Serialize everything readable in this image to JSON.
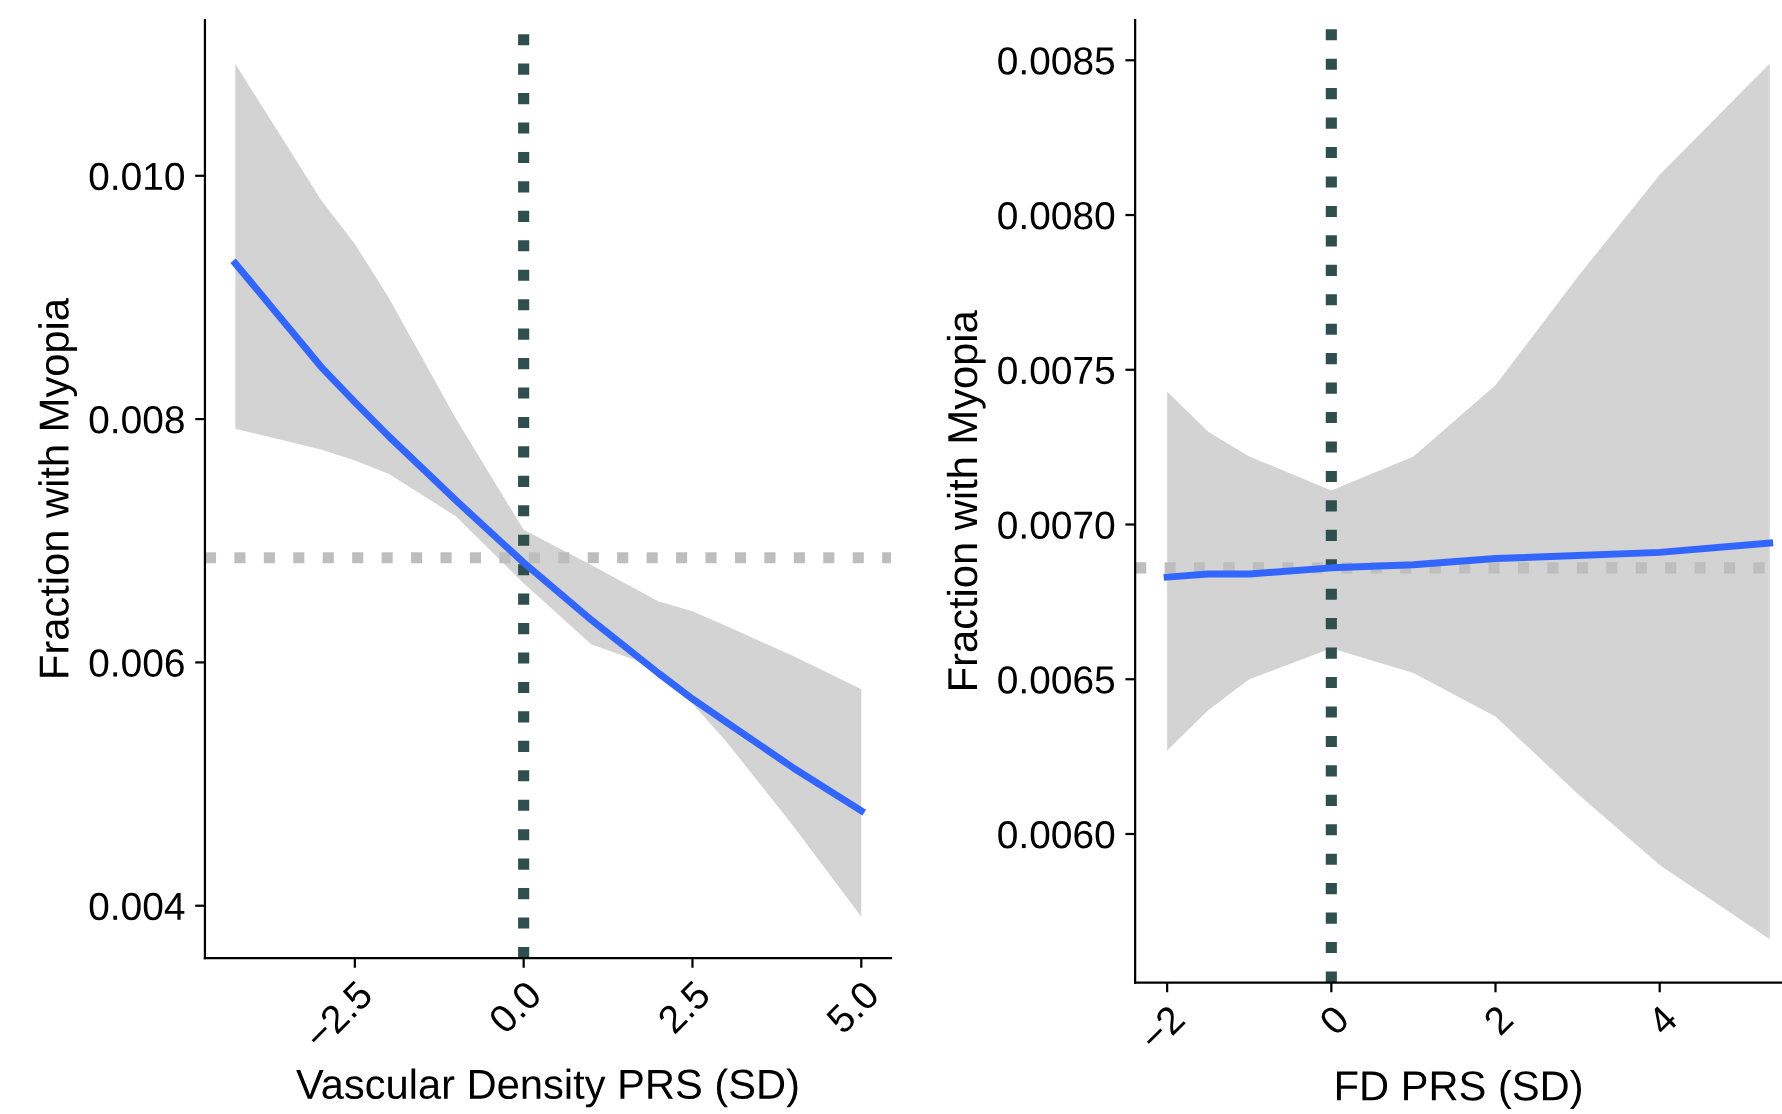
{
  "chart_data": [
    {
      "type": "line",
      "xlabel": "Vascular Density PRS (SD)",
      "ylabel": "Fraction with Myopia",
      "xlim": [
        -4.72,
        5.44
      ],
      "ylim": [
        0.00357,
        0.01128
      ],
      "xticks": [
        {
          "value": -2.5,
          "label": "−2.5"
        },
        {
          "value": 0,
          "label": "0.0"
        },
        {
          "value": 2.5,
          "label": "2.5"
        },
        {
          "value": 5,
          "label": "5.0"
        }
      ],
      "yticks": [
        {
          "value": 0.004,
          "label": "0.004"
        },
        {
          "value": 0.006,
          "label": "0.006"
        },
        {
          "value": 0.008,
          "label": "0.008"
        },
        {
          "value": 0.01,
          "label": "0.010"
        }
      ],
      "grid": false,
      "legend": false,
      "marker": "none",
      "line_style": "solid",
      "series": [
        {
          "color": "#3366ff",
          "x": [
            -4.27,
            -3,
            -2.5,
            -2,
            -1,
            0,
            1,
            2,
            2.5,
            3,
            4,
            5
          ],
          "values": [
            0.00928,
            0.00843,
            0.00814,
            0.00786,
            0.00733,
            0.00682,
            0.00635,
            0.00591,
            0.0057,
            0.00551,
            0.00513,
            0.00478
          ],
          "lower": [
            0.00792,
            0.00775,
            0.00766,
            0.00755,
            0.0072,
            0.00665,
            0.00615,
            0.00595,
            0.00566,
            0.00535,
            0.00465,
            0.00391
          ],
          "upper": [
            0.01092,
            0.0098,
            0.00944,
            0.009,
            0.008,
            0.00709,
            0.0068,
            0.0065,
            0.00642,
            0.0063,
            0.00605,
            0.00578
          ]
        }
      ],
      "ref_lines": [
        {
          "axis": "x",
          "value": 0,
          "color": "#2f4f4f",
          "line_style": "dotted"
        },
        {
          "axis": "y",
          "value": 0.00686,
          "color": "#bebebe",
          "line_style": "dotted"
        }
      ]
    },
    {
      "type": "line",
      "xlabel": "FD PRS (SD)",
      "ylabel": "Fraction with Myopia",
      "xlim": [
        -2.39,
        5.49
      ],
      "ylim": [
        0.00552,
        0.00863
      ],
      "xticks": [
        {
          "value": -2,
          "label": "−2"
        },
        0,
        2,
        4
      ],
      "yticks": [
        {
          "value": 0.006,
          "label": "0.0060"
        },
        {
          "value": 0.0065,
          "label": "0.0065"
        },
        {
          "value": 0.007,
          "label": "0.0070"
        },
        {
          "value": 0.0075,
          "label": "0.0075"
        },
        {
          "value": 0.008,
          "label": "0.0080"
        },
        {
          "value": 0.0085,
          "label": "0.0085"
        }
      ],
      "grid": false,
      "legend": false,
      "marker": "none",
      "line_style": "solid",
      "series": [
        {
          "color": "#3366ff",
          "x": [
            -2,
            -1.5,
            -1,
            0,
            1,
            2,
            3,
            4,
            5.34
          ],
          "values": [
            0.00683,
            0.00684,
            0.00684,
            0.00686,
            0.00687,
            0.00689,
            0.0069,
            0.00691,
            0.00694
          ],
          "lower": [
            0.00627,
            0.0064,
            0.0065,
            0.0066,
            0.00652,
            0.00638,
            0.00613,
            0.0059,
            0.00566
          ],
          "upper": [
            0.00743,
            0.0073,
            0.00722,
            0.00711,
            0.00722,
            0.00745,
            0.0078,
            0.00813,
            0.00849
          ]
        }
      ],
      "ref_lines": [
        {
          "axis": "x",
          "value": 0,
          "color": "#2f4f4f",
          "line_style": "dotted"
        },
        {
          "axis": "y",
          "value": 0.00686,
          "color": "#bebebe",
          "line_style": "dotted"
        }
      ]
    }
  ]
}
